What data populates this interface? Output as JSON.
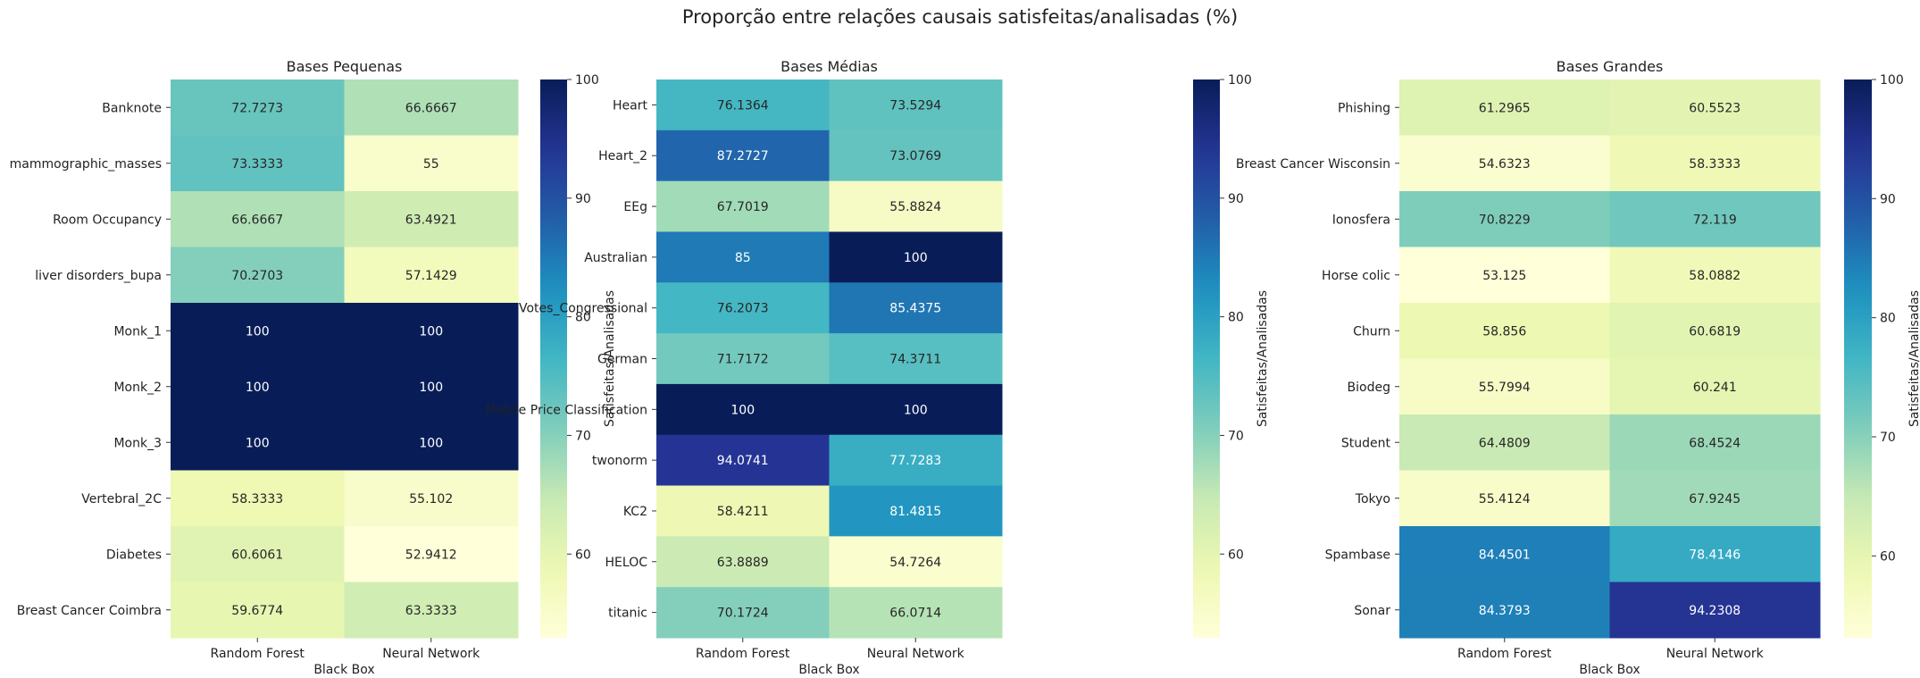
{
  "suptitle": "Proporção entre relações causais satisfeitas/analisadas (%)",
  "chart_data": [
    {
      "type": "heatmap",
      "title": "Bases Pequenas",
      "xlabel": "Black Box",
      "x": [
        "Random Forest",
        "Neural Network"
      ],
      "y": [
        "Banknote",
        "mammographic_masses",
        "Room Occupancy",
        "liver disorders_bupa",
        "Monk_1",
        "Monk_2",
        "Monk_3",
        "Vertebral_2C",
        "Diabetes",
        "Breast Cancer Coimbra"
      ],
      "values": [
        [
          "72.7273",
          "66.6667"
        ],
        [
          "73.3333",
          "55"
        ],
        [
          "66.6667",
          "63.4921"
        ],
        [
          "70.2703",
          "57.1429"
        ],
        [
          "100",
          "100"
        ],
        [
          "100",
          "100"
        ],
        [
          "100",
          "100"
        ],
        [
          "58.3333",
          "55.102"
        ],
        [
          "60.6061",
          "52.9412"
        ],
        [
          "59.6774",
          "63.3333"
        ]
      ],
      "colorbar": {
        "label": "Satisfeitas/Analisadas",
        "ticks": [
          "60",
          "70",
          "80",
          "90",
          "100"
        ],
        "range": [
          52.9412,
          100
        ],
        "cmap": "YlGnBu"
      }
    },
    {
      "type": "heatmap",
      "title": "Bases Médias",
      "xlabel": "Black Box",
      "x": [
        "Random Forest",
        "Neural Network"
      ],
      "y": [
        "Heart",
        "Heart_2",
        "EEg",
        "Australian",
        "Votes_Congressional",
        "German",
        "Mobile Price Classification",
        "twonorm",
        "KC2",
        "HELOC",
        "titanic"
      ],
      "values": [
        [
          "76.1364",
          "73.5294"
        ],
        [
          "87.2727",
          "73.0769"
        ],
        [
          "67.7019",
          "55.8824"
        ],
        [
          "85",
          "100"
        ],
        [
          "76.2073",
          "85.4375"
        ],
        [
          "71.7172",
          "74.3711"
        ],
        [
          "100",
          "100"
        ],
        [
          "94.0741",
          "77.7283"
        ],
        [
          "58.4211",
          "81.4815"
        ],
        [
          "63.8889",
          "54.7264"
        ],
        [
          "70.1724",
          "66.0714"
        ]
      ],
      "colorbar": {
        "label": "Satisfeitas/Analisadas",
        "ticks": [
          "60",
          "70",
          "80",
          "90",
          "100"
        ],
        "range": [
          52.9412,
          100
        ],
        "cmap": "YlGnBu"
      }
    },
    {
      "type": "heatmap",
      "title": "Bases Grandes",
      "xlabel": "Black Box",
      "x": [
        "Random Forest",
        "Neural Network"
      ],
      "y": [
        "Phishing",
        "Breast Cancer Wisconsin",
        "Ionosfera",
        "Horse colic",
        "Churn",
        "Biodeg",
        "Student",
        "Tokyo",
        "Spambase",
        "Sonar"
      ],
      "values": [
        [
          "61.2965",
          "60.5523"
        ],
        [
          "54.6323",
          "58.3333"
        ],
        [
          "70.8229",
          "72.119"
        ],
        [
          "53.125",
          "58.0882"
        ],
        [
          "58.856",
          "60.6819"
        ],
        [
          "55.7994",
          "60.241"
        ],
        [
          "64.4809",
          "68.4524"
        ],
        [
          "55.4124",
          "67.9245"
        ],
        [
          "84.4501",
          "78.4146"
        ],
        [
          "84.3793",
          "94.2308"
        ]
      ],
      "colorbar": {
        "label": "Satisfeitas/Analisadas",
        "ticks": [
          "60",
          "70",
          "80",
          "90",
          "100"
        ],
        "range": [
          53.125,
          100
        ],
        "cmap": "YlGnBu"
      }
    }
  ]
}
